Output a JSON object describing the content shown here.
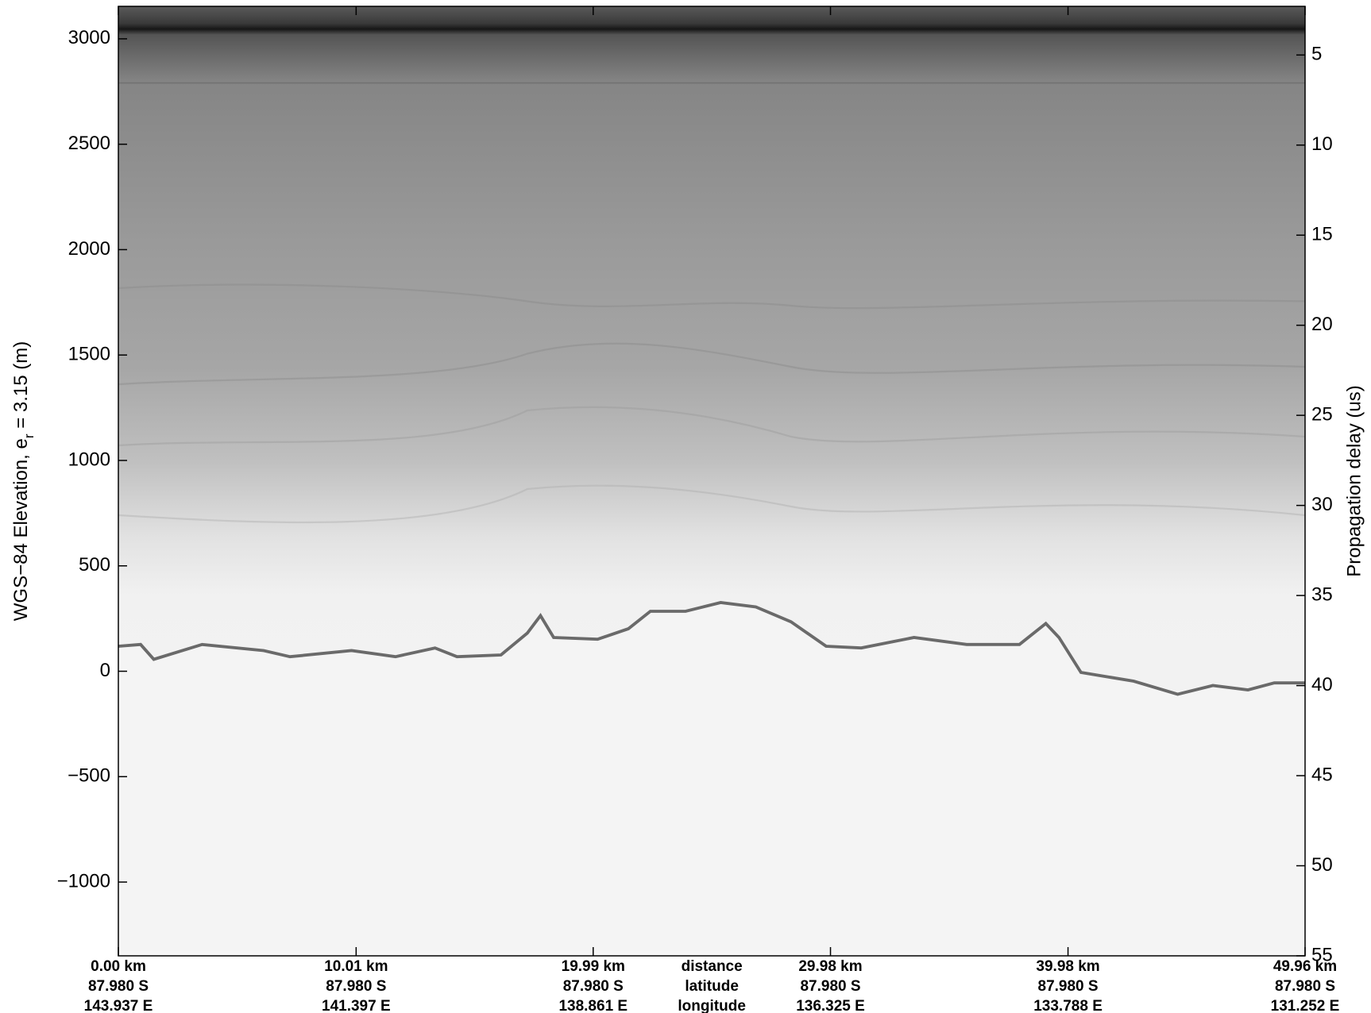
{
  "chart_data": {
    "type": "radargram",
    "ylabel": {
      "text": "WGS−84 Elevation, e",
      "subscript": "r",
      "suffix": " = 3.15 (m)"
    },
    "y2label": "Propagation delay (us)",
    "ylim": [
      -1350,
      3154
    ],
    "yticks": [
      {
        "value": -1000,
        "label": "−1000"
      },
      {
        "value": -500,
        "label": "−500"
      },
      0,
      500,
      1000,
      1500,
      2000,
      2500,
      3000
    ],
    "y2lim": [
      55,
      2.3
    ],
    "y2ticks": [
      5,
      10,
      15,
      20,
      25,
      30,
      35,
      40,
      45,
      50,
      55
    ],
    "xlim": [
      0,
      49.96
    ],
    "xticks": [
      {
        "value": 0,
        "label": "0.00 km"
      },
      {
        "value": 10.01,
        "label": "10.01 km"
      },
      {
        "value": 19.99,
        "label": "19.99 km"
      },
      {
        "value": 29.98,
        "label": "29.98 km"
      },
      {
        "value": 39.98,
        "label": "39.98 km"
      },
      {
        "value": 49.96,
        "label": "49.96 km"
      }
    ],
    "latitudes": [
      "87.980 S",
      "87.980 S",
      "87.980 S",
      "87.980 S",
      "87.980 S",
      "87.980 S"
    ],
    "longitudes": [
      "143.937 E",
      "141.397 E",
      "138.861 E",
      "136.325 E",
      "133.788 E",
      "131.252 E"
    ],
    "row_names": [
      "distance",
      "latitude",
      "longitude"
    ]
  }
}
